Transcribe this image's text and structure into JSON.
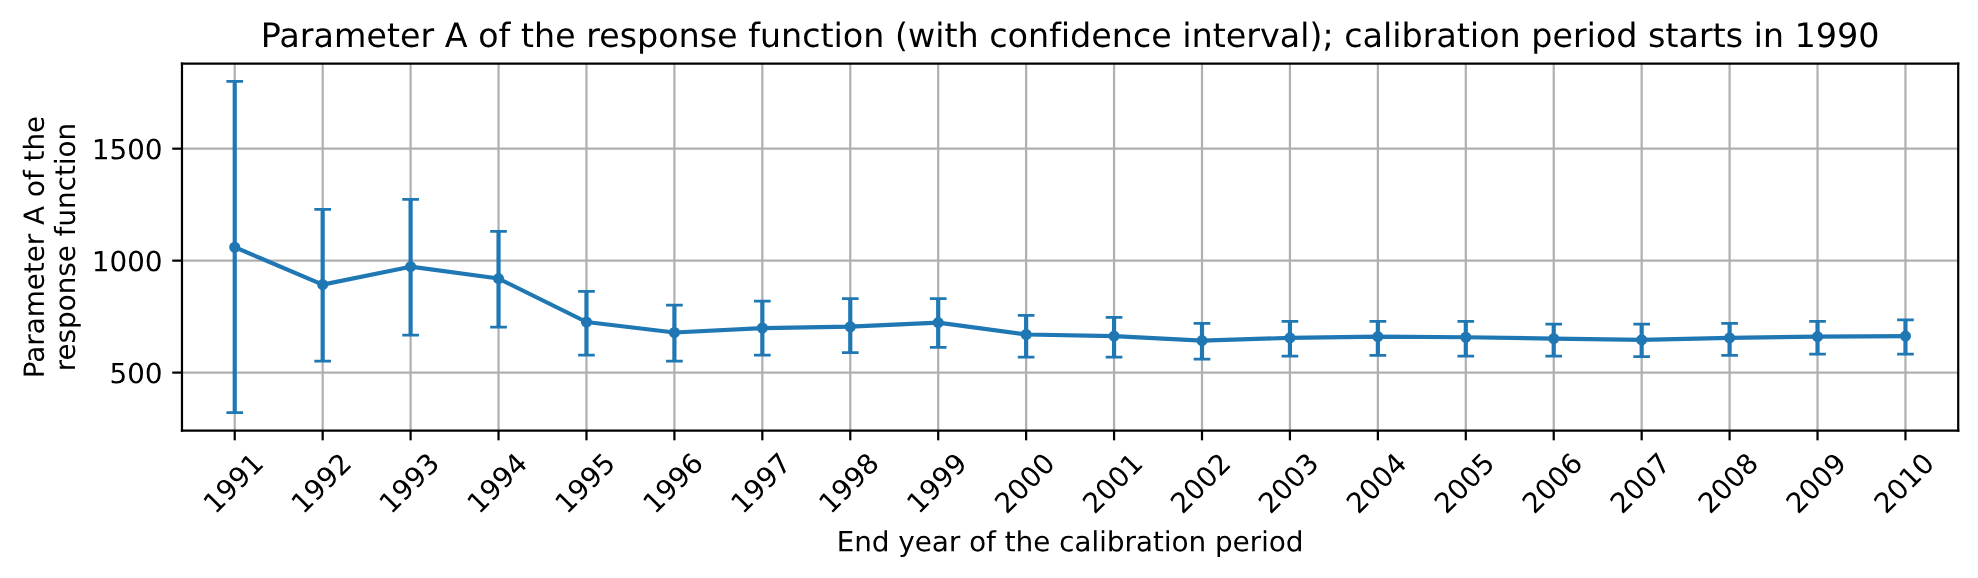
{
  "chart_data": {
    "type": "line",
    "title": "Parameter A of the response function (with confidence interval); calibration period starts in 1990",
    "xlabel": "End year of the calibration period",
    "ylabel": "Parameter A of the\nresponse function",
    "categories": [
      "1991",
      "1992",
      "1993",
      "1994",
      "1995",
      "1996",
      "1997",
      "1998",
      "1999",
      "2000",
      "2001",
      "2002",
      "2003",
      "2004",
      "2005",
      "2006",
      "2007",
      "2008",
      "2009",
      "2010"
    ],
    "values": [
      1060,
      893,
      973,
      920,
      726,
      679,
      699,
      705,
      723,
      670,
      663,
      643,
      655,
      661,
      658,
      652,
      646,
      655,
      661,
      663
    ],
    "errors": [
      [
        321,
        1801
      ],
      [
        551,
        1229
      ],
      [
        667,
        1274
      ],
      [
        703,
        1131
      ],
      [
        578,
        863
      ],
      [
        551,
        801
      ],
      [
        578,
        819
      ],
      [
        589,
        830
      ],
      [
        613,
        830
      ],
      [
        569,
        756
      ],
      [
        569,
        747
      ],
      [
        560,
        720
      ],
      [
        574,
        729
      ],
      [
        577,
        729
      ],
      [
        574,
        729
      ],
      [
        574,
        717
      ],
      [
        571,
        717
      ],
      [
        577,
        720
      ],
      [
        583,
        729
      ],
      [
        583,
        735
      ]
    ],
    "color": "#1f77b4",
    "ylim": [
      241,
      1880
    ],
    "yticks": [
      500,
      1000,
      1500
    ],
    "grid": true,
    "marker": "circle",
    "line_style": "solid"
  }
}
